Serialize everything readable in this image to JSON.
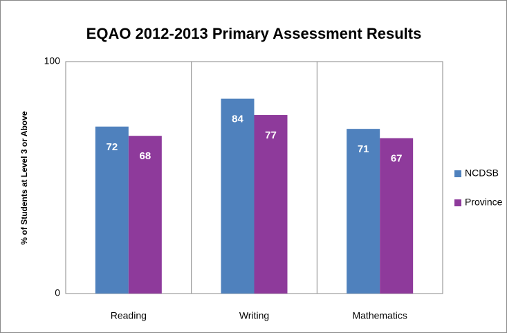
{
  "chart_data": {
    "type": "bar",
    "title": "EQAO 2012-2013 Primary Assessment Results",
    "y_label": "% of Students at Level 3 or Above",
    "categories": [
      "Reading",
      "Writing",
      "Mathematics"
    ],
    "series": [
      {
        "name": "NCDSB",
        "color": "#4f81bd",
        "values": [
          72,
          84,
          71
        ]
      },
      {
        "name": "Province",
        "color": "#8e3a9b",
        "values": [
          68,
          77,
          67
        ]
      }
    ],
    "ylim": [
      0,
      100
    ],
    "yticks": [
      0,
      100
    ],
    "grid": false,
    "legend": "right"
  }
}
